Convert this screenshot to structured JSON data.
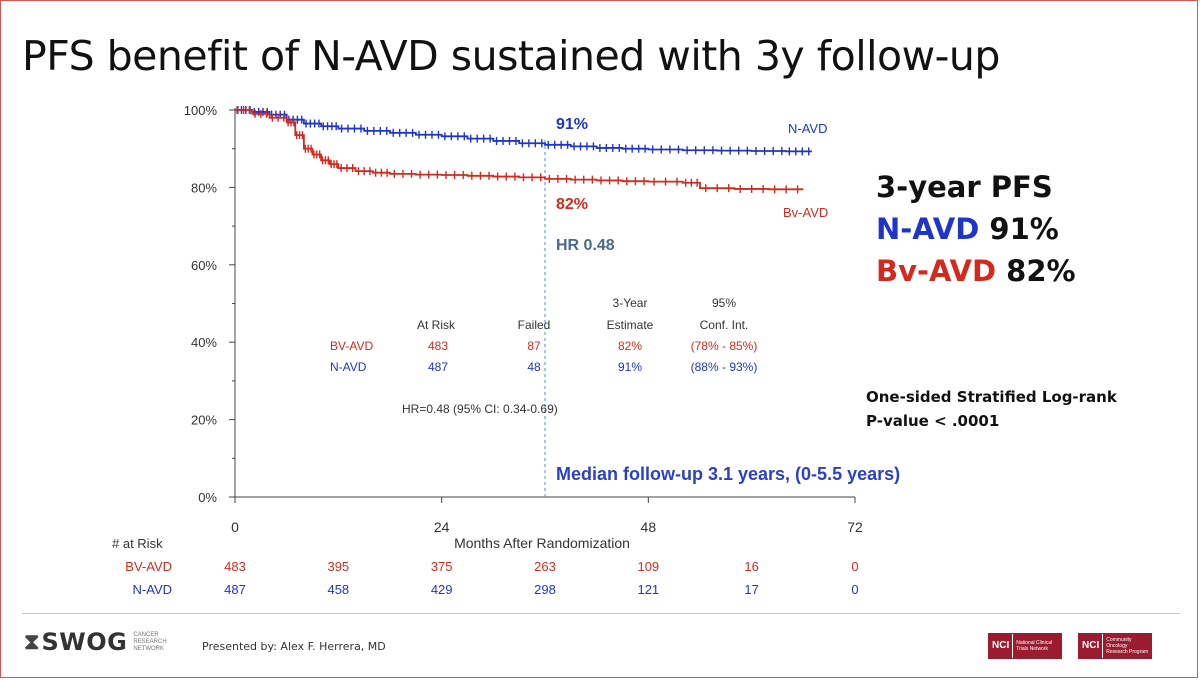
{
  "slide": {
    "title": "PFS benefit of N-AVD sustained with 3y follow-up"
  },
  "summary": {
    "heading": "3-year PFS",
    "n_avd_label": "N-AVD",
    "n_avd_value": "91%",
    "bv_avd_label": "Bv-AVD",
    "bv_avd_value": "82%",
    "pvalue_line1": "One-sided Stratified Log-rank",
    "pvalue_line2": "P-value < .0001"
  },
  "colors": {
    "n_avd": "#1f35c9",
    "bv_avd": "#d42a1e",
    "hr": "#4a6a8a",
    "followup": "#2b3fc7"
  },
  "chart_data": {
    "type": "line",
    "subtype": "kaplan-meier",
    "xlabel": "Months After Randomization",
    "ylabel": "",
    "x_ticks": [
      0,
      24,
      48,
      72
    ],
    "y_ticks": [
      "0%",
      "20%",
      "40%",
      "60%",
      "80%",
      "100%"
    ],
    "xlim": [
      0,
      72
    ],
    "ylim": [
      0,
      100
    ],
    "series": [
      {
        "name": "N-AVD",
        "points": [
          [
            0,
            100
          ],
          [
            2,
            99.5
          ],
          [
            4,
            98.8
          ],
          [
            6,
            97.5
          ],
          [
            8,
            96.5
          ],
          [
            10,
            95.8
          ],
          [
            12,
            95.2
          ],
          [
            15,
            94.6
          ],
          [
            18,
            94.1
          ],
          [
            21,
            93.6
          ],
          [
            24,
            93.2
          ],
          [
            27,
            92.6
          ],
          [
            30,
            92.0
          ],
          [
            33,
            91.4
          ],
          [
            36,
            91.0
          ],
          [
            39,
            90.6
          ],
          [
            42,
            90.2
          ],
          [
            45,
            90.0
          ],
          [
            48,
            89.8
          ],
          [
            52,
            89.6
          ],
          [
            56,
            89.5
          ],
          [
            60,
            89.4
          ],
          [
            64,
            89.3
          ],
          [
            67,
            89.3
          ]
        ],
        "end_label": "N-AVD",
        "annotation": "91%"
      },
      {
        "name": "Bv-AVD",
        "points": [
          [
            0,
            100
          ],
          [
            2,
            99.0
          ],
          [
            4,
            98.0
          ],
          [
            6,
            96.8
          ],
          [
            7,
            93.5
          ],
          [
            8,
            90.0
          ],
          [
            9,
            88.5
          ],
          [
            10,
            87.0
          ],
          [
            11,
            86.0
          ],
          [
            12,
            85.0
          ],
          [
            14,
            84.2
          ],
          [
            16,
            83.8
          ],
          [
            18,
            83.5
          ],
          [
            21,
            83.3
          ],
          [
            24,
            83.2
          ],
          [
            27,
            83.0
          ],
          [
            30,
            82.8
          ],
          [
            33,
            82.6
          ],
          [
            36,
            82.2
          ],
          [
            39,
            82.0
          ],
          [
            42,
            81.8
          ],
          [
            45,
            81.6
          ],
          [
            48,
            81.5
          ],
          [
            52,
            81.2
          ],
          [
            54,
            79.8
          ],
          [
            58,
            79.6
          ],
          [
            62,
            79.5
          ],
          [
            66,
            79.5
          ]
        ],
        "end_label": "Bv-AVD",
        "annotation": "82%"
      }
    ],
    "vertical_marker_x": 36,
    "hr_label": "HR 0.48",
    "followup_label": "Median follow-up 3.1 years, (0-5.5 years)",
    "inner_table": {
      "headers": [
        "At Risk",
        "Failed",
        "3-Year Estimate",
        "95% Conf. Int."
      ],
      "header_top": [
        "",
        "",
        "3-Year",
        "95%"
      ],
      "header_bottom": [
        "At Risk",
        "Failed",
        "Estimate",
        "Conf. Int."
      ],
      "rows": [
        {
          "arm": "BV-AVD",
          "at_risk": "483",
          "failed": "87",
          "estimate": "82%",
          "ci": "(78% - 85%)"
        },
        {
          "arm": "N-AVD",
          "at_risk": "487",
          "failed": "48",
          "estimate": "91%",
          "ci": "(88% - 93%)"
        }
      ],
      "hr_text": "HR=0.48 (95% CI: 0.34-0.69)"
    },
    "at_risk": {
      "title": "# at Risk",
      "timepoints": [
        0,
        12,
        24,
        36,
        48,
        60,
        72
      ],
      "rows": [
        {
          "arm": "BV-AVD",
          "values": [
            "483",
            "395",
            "375",
            "263",
            "109",
            "16",
            "0"
          ]
        },
        {
          "arm": "N-AVD",
          "values": [
            "487",
            "458",
            "429",
            "298",
            "121",
            "17",
            "0"
          ]
        }
      ]
    }
  },
  "footer": {
    "logo_name": "SWOG",
    "logo_sub": "CANCER RESEARCH NETWORK",
    "presenter": "Presented by: Alex F. Herrera, MD",
    "nci1_tag": "NCI",
    "nci1_text": "National Clinical Trials Network",
    "nci2_tag": "NCI",
    "nci2_text": "Community Oncology Research Program"
  }
}
